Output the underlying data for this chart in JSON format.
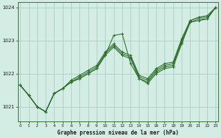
{
  "xlabel": "Graphe pression niveau de la mer (hPa)",
  "background_color": "#d4ede4",
  "grid_color": "#aacfbf",
  "line_color": "#2d6e2d",
  "ylim": [
    1020.55,
    1024.15
  ],
  "xlim": [
    -0.3,
    23.3
  ],
  "yticks": [
    1021,
    1022,
    1023,
    1024
  ],
  "xticks": [
    0,
    1,
    2,
    3,
    4,
    5,
    6,
    7,
    8,
    9,
    10,
    11,
    12,
    13,
    14,
    15,
    16,
    17,
    18,
    19,
    20,
    21,
    22,
    23
  ],
  "series": [
    [
      1021.65,
      1021.35,
      1021.0,
      1020.85,
      1021.4,
      1021.55,
      1021.75,
      1021.85,
      1022.0,
      1022.15,
      1022.55,
      1023.15,
      1023.2,
      1022.3,
      1021.85,
      1021.7,
      1022.0,
      1022.15,
      1022.2,
      1022.9,
      1023.55,
      1023.6,
      1023.65,
      1024.0
    ],
    [
      1021.65,
      1021.35,
      1021.0,
      1020.85,
      1021.4,
      1021.55,
      1021.75,
      1021.85,
      1022.0,
      1022.15,
      1022.55,
      1022.8,
      1022.55,
      1022.45,
      1021.85,
      1021.75,
      1022.05,
      1022.2,
      1022.25,
      1022.95,
      1023.55,
      1023.65,
      1023.65,
      1024.0
    ],
    [
      1021.65,
      1021.35,
      1021.0,
      1020.85,
      1021.4,
      1021.55,
      1021.75,
      1021.9,
      1022.05,
      1022.2,
      1022.6,
      1022.85,
      1022.6,
      1022.5,
      1021.9,
      1021.8,
      1022.1,
      1022.25,
      1022.3,
      1023.0,
      1023.6,
      1023.7,
      1023.7,
      1024.0
    ],
    [
      1021.65,
      1021.35,
      1021.0,
      1020.85,
      1021.4,
      1021.55,
      1021.8,
      1021.95,
      1022.1,
      1022.25,
      1022.65,
      1022.9,
      1022.65,
      1022.55,
      1021.95,
      1021.85,
      1022.15,
      1022.3,
      1022.35,
      1023.05,
      1023.6,
      1023.7,
      1023.75,
      1024.0
    ]
  ]
}
